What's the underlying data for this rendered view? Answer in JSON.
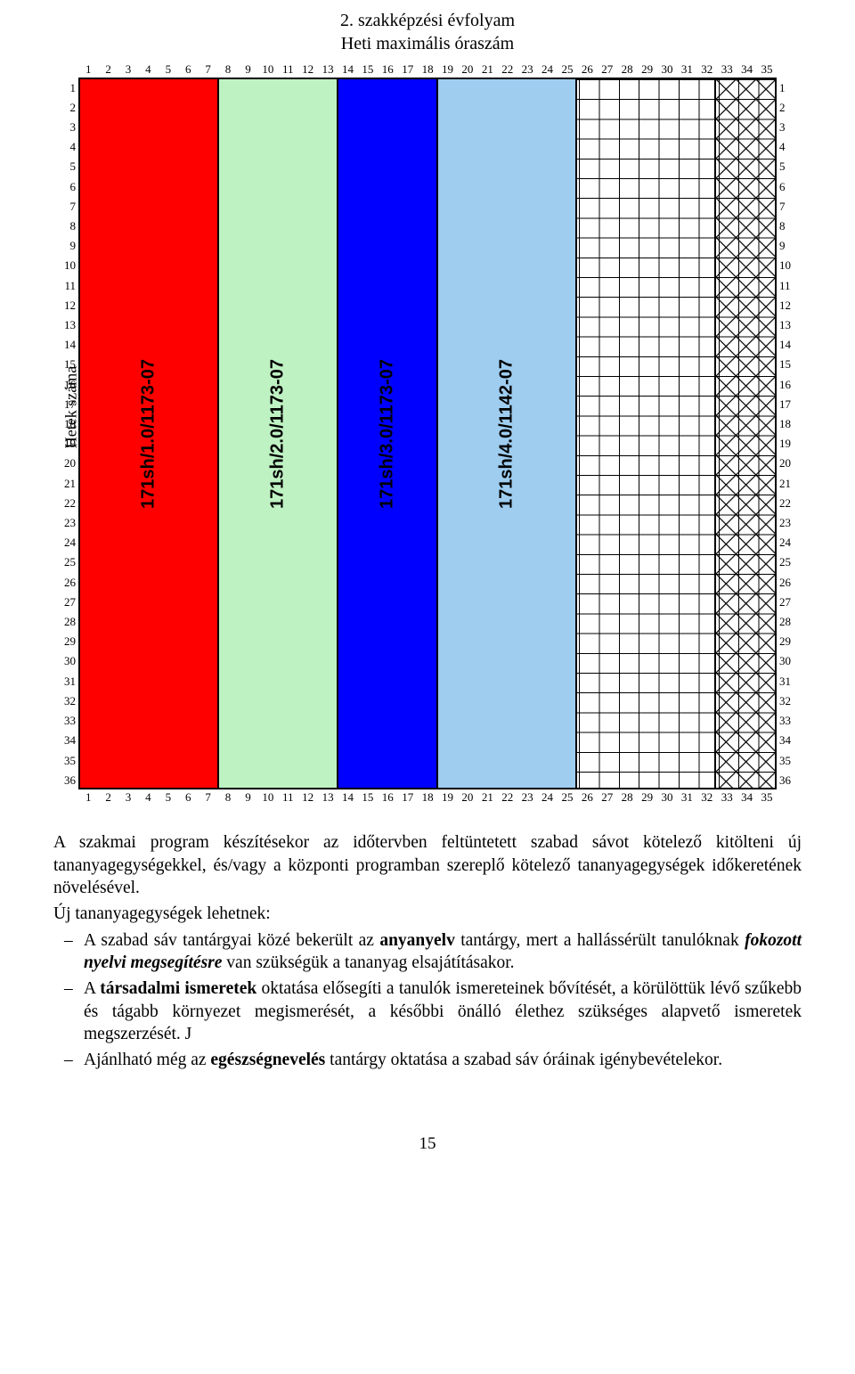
{
  "chart": {
    "title_line1": "2. szakképzési évfolyam",
    "title_line2": "Heti maximális óraszám",
    "y_axis_label": "Hetek száma",
    "x_ticks": [
      "1",
      "2",
      "3",
      "4",
      "5",
      "6",
      "7",
      "8",
      "9",
      "10",
      "11",
      "12",
      "13",
      "14",
      "15",
      "16",
      "17",
      "18",
      "19",
      "20",
      "21",
      "22",
      "23",
      "24",
      "25",
      "26",
      "27",
      "28",
      "29",
      "30",
      "31",
      "32",
      "33",
      "34",
      "35"
    ],
    "y_ticks": [
      "1",
      "2",
      "3",
      "4",
      "5",
      "6",
      "7",
      "8",
      "9",
      "10",
      "11",
      "12",
      "13",
      "14",
      "15",
      "16",
      "17",
      "18",
      "19",
      "20",
      "21",
      "22",
      "23",
      "24",
      "25",
      "26",
      "27",
      "28",
      "29",
      "30",
      "31",
      "32",
      "33",
      "34",
      "35",
      "36"
    ],
    "cols": 35,
    "rows": 36,
    "bands": [
      {
        "label": "171sh/1.0/1173-07",
        "cols": 7,
        "color": "#ff0000",
        "text_color": "#000000",
        "pattern": "solid"
      },
      {
        "label": "171sh/2.0/1173-07",
        "cols": 6,
        "color": "#bff2c3",
        "text_color": "#000000",
        "pattern": "solid"
      },
      {
        "label": "171sh/3.0/1173-07",
        "cols": 5,
        "color": "#0000ff",
        "text_color": "#000000",
        "pattern": "solid"
      },
      {
        "label": "171sh/4.0/1142-07",
        "cols": 7,
        "color": "#9ecdf0",
        "text_color": "#000000",
        "pattern": "solid"
      },
      {
        "label": "",
        "cols": 7,
        "color": "#ffffff",
        "text_color": "#000000",
        "pattern": "grid"
      },
      {
        "label": "",
        "cols": 3,
        "color": "#ffffff",
        "text_color": "#000000",
        "pattern": "crosshatch"
      }
    ],
    "grid_line_color": "#000000",
    "plot_border_color": "#000000",
    "background": "#ffffff",
    "title_fontsize": 20,
    "tick_fontsize": 13,
    "band_label_fontsize": 20
  },
  "text": {
    "p1": "A szakmai program készítésekor az időtervben feltüntetett szabad sávot kötelező kitölteni új tananyagegységekkel, és/vagy a központi programban szereplő kötelező tananyagegységek időkeretének növelésével.",
    "p2": "Új tananyagegységek lehetnek:",
    "b1_pre": "A szabad sáv tantárgyai közé bekerült az ",
    "b1_bold1": "anyanyelv",
    "b1_mid": " tantárgy, mert a hallássérült tanulóknak ",
    "b1_bi": "fokozott nyelvi megsegítésre",
    "b1_post": " van szükségük a tananyag elsajátításakor.",
    "b2_pre": "A ",
    "b2_bold": "társadalmi ismeretek",
    "b2_post": " oktatása elősegíti a tanulók ismereteinek bővítését, a körülöttük lévő szűkebb és tágabb környezet megismerését, a későbbi önálló élethez szükséges alapvető ismeretek megszerzését. J",
    "b3_pre": "Ajánlható még az ",
    "b3_bold": "egészségnevelés",
    "b3_post": " tantárgy oktatása a szabad sáv óráinak igénybevételekor.",
    "page_number": "15"
  }
}
